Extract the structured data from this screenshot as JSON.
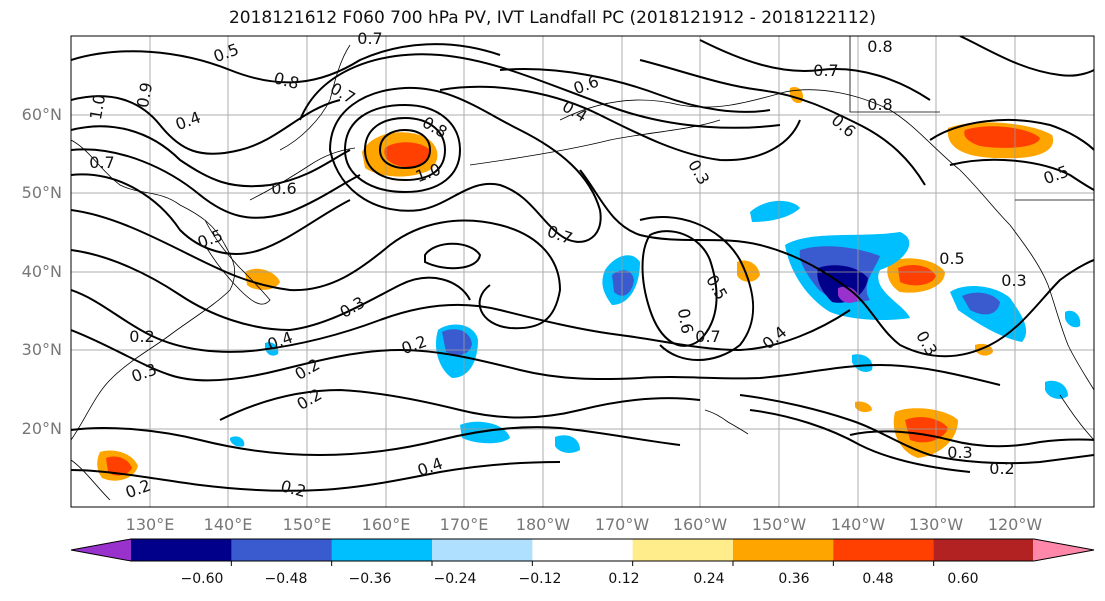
{
  "title": "2018121612 F060 700 hPa PV, IVT Landfall PC (2018121912 - 2018122112)",
  "lat_ticks": [
    "60°N",
    "50°N",
    "40°N",
    "30°N",
    "20°N"
  ],
  "lon_ticks": [
    "130°E",
    "140°E",
    "150°E",
    "160°E",
    "170°E",
    "180°W",
    "170°W",
    "160°W",
    "150°W",
    "140°W",
    "130°W",
    "120°W"
  ],
  "contour_labels": [
    "0.5",
    "0.7",
    "0.8",
    "0.7",
    "0.4",
    "1.0",
    "0.9",
    "0.7",
    "0.8",
    "1.0",
    "0.6",
    "0.6",
    "0.4",
    "0.8",
    "0.7",
    "0.6",
    "0.8",
    "0.5",
    "0.3",
    "0.7",
    "0.5",
    "0.6",
    "0.7",
    "0.4",
    "0.5",
    "0.3",
    "0.3",
    "0.2",
    "0.3",
    "0.4",
    "0.2",
    "0.3",
    "0.2",
    "0.2",
    "0.4",
    "0.2",
    "0.2",
    "0.3",
    "0.2",
    "0.5"
  ],
  "colorbar": {
    "ticks": [
      "−0.60",
      "−0.48",
      "−0.36",
      "−0.24",
      "−0.12",
      "0.12",
      "0.24",
      "0.36",
      "0.48",
      "0.60"
    ],
    "colors": [
      "#9932cc",
      "#00008b",
      "#3a5bcf",
      "#00bfff",
      "#b0e0ff",
      "#ffffff",
      "#ffec8b",
      "#ffa500",
      "#ff4000",
      "#b22222",
      "#ff88aa"
    ]
  }
}
